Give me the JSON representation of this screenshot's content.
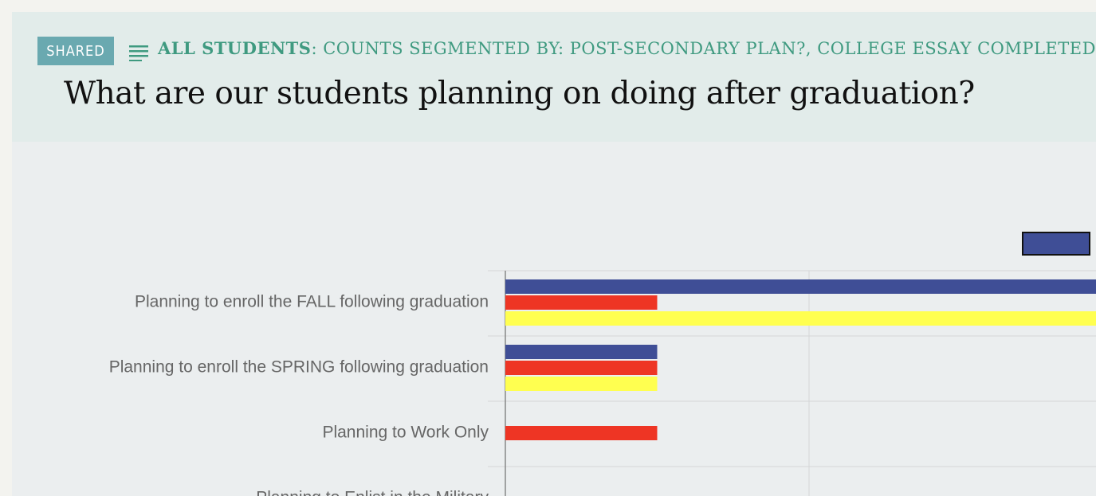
{
  "header": {
    "badge": "SHARED",
    "scope": "ALL STUDENTS",
    "description": ": COUNTS SEGMENTED BY: POST-SECONDARY PLAN?, COLLEGE ESSAY COMPLETED",
    "title": "What are our students planning on doing after graduation?"
  },
  "chart_data": {
    "type": "bar",
    "orientation": "horizontal",
    "categories": [
      "Planning to enroll the FALL following graduation",
      "Planning to enroll the SPRING following graduation",
      "Planning to Work Only",
      "Planning to Enlist in the Military"
    ],
    "series": [
      {
        "color": "#3f4e96",
        "values": [
          4,
          1,
          null,
          null
        ]
      },
      {
        "color": "#ee3524",
        "values": [
          1,
          1,
          1,
          null
        ]
      },
      {
        "color": "#ffff50",
        "values": [
          4,
          1,
          null,
          null
        ]
      }
    ],
    "xlim": [
      0,
      4
    ],
    "xticks": [
      0,
      2,
      4
    ],
    "grid": true
  }
}
